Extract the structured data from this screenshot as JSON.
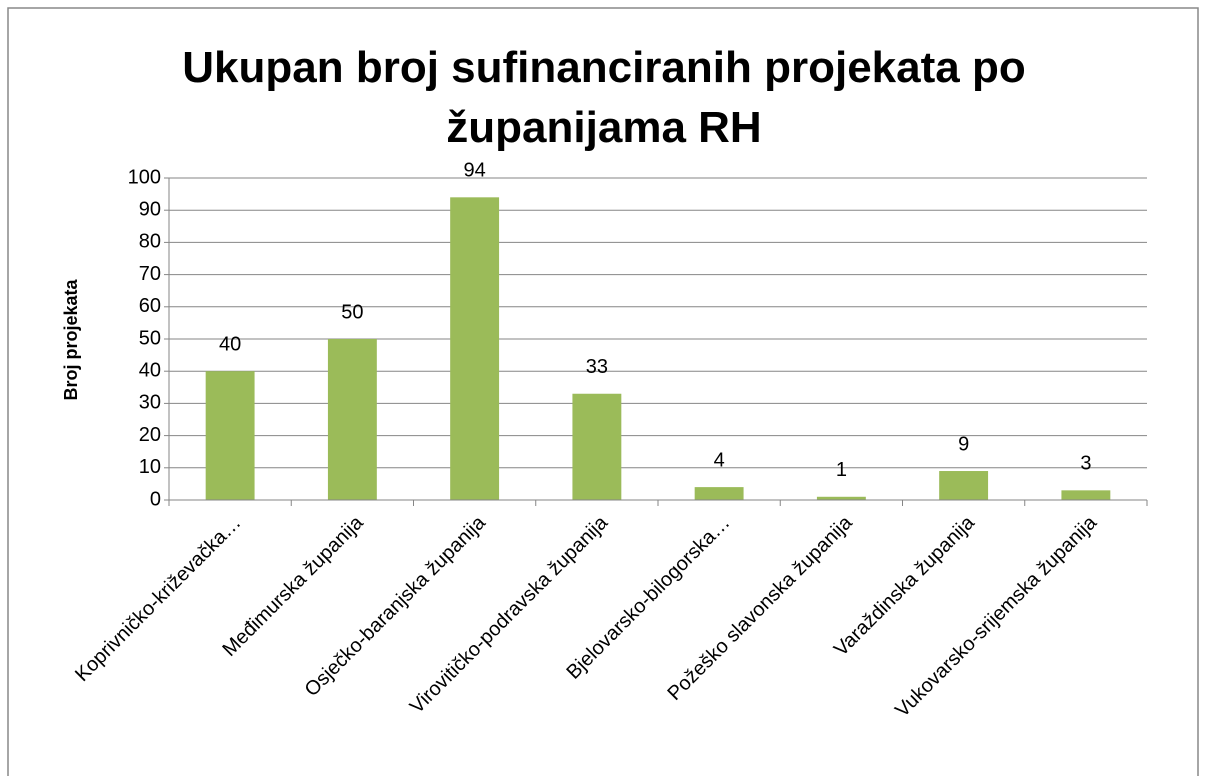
{
  "chart_data": {
    "type": "bar",
    "title": "Ukupan broj sufinanciranih projekata po županijama RH",
    "y_label": "Broj projekata",
    "categories": [
      "Koprivničko-križevačka…",
      "Međimurska županija",
      "Osječko-baranjska županija",
      "Virovitičko-podravska županija",
      "Bjelovarsko-bilogorska…",
      "Požeško slavonska županija",
      "Varaždinska županija",
      "Vukovarsko-srijemska županija"
    ],
    "values": [
      40,
      50,
      94,
      33,
      4,
      1,
      9,
      3
    ],
    "color": "#9bbb59",
    "ylim": [
      0,
      100
    ],
    "yticks": [
      0,
      10,
      20,
      30,
      40,
      50,
      60,
      70,
      80,
      90,
      100
    ],
    "grid": true
  }
}
